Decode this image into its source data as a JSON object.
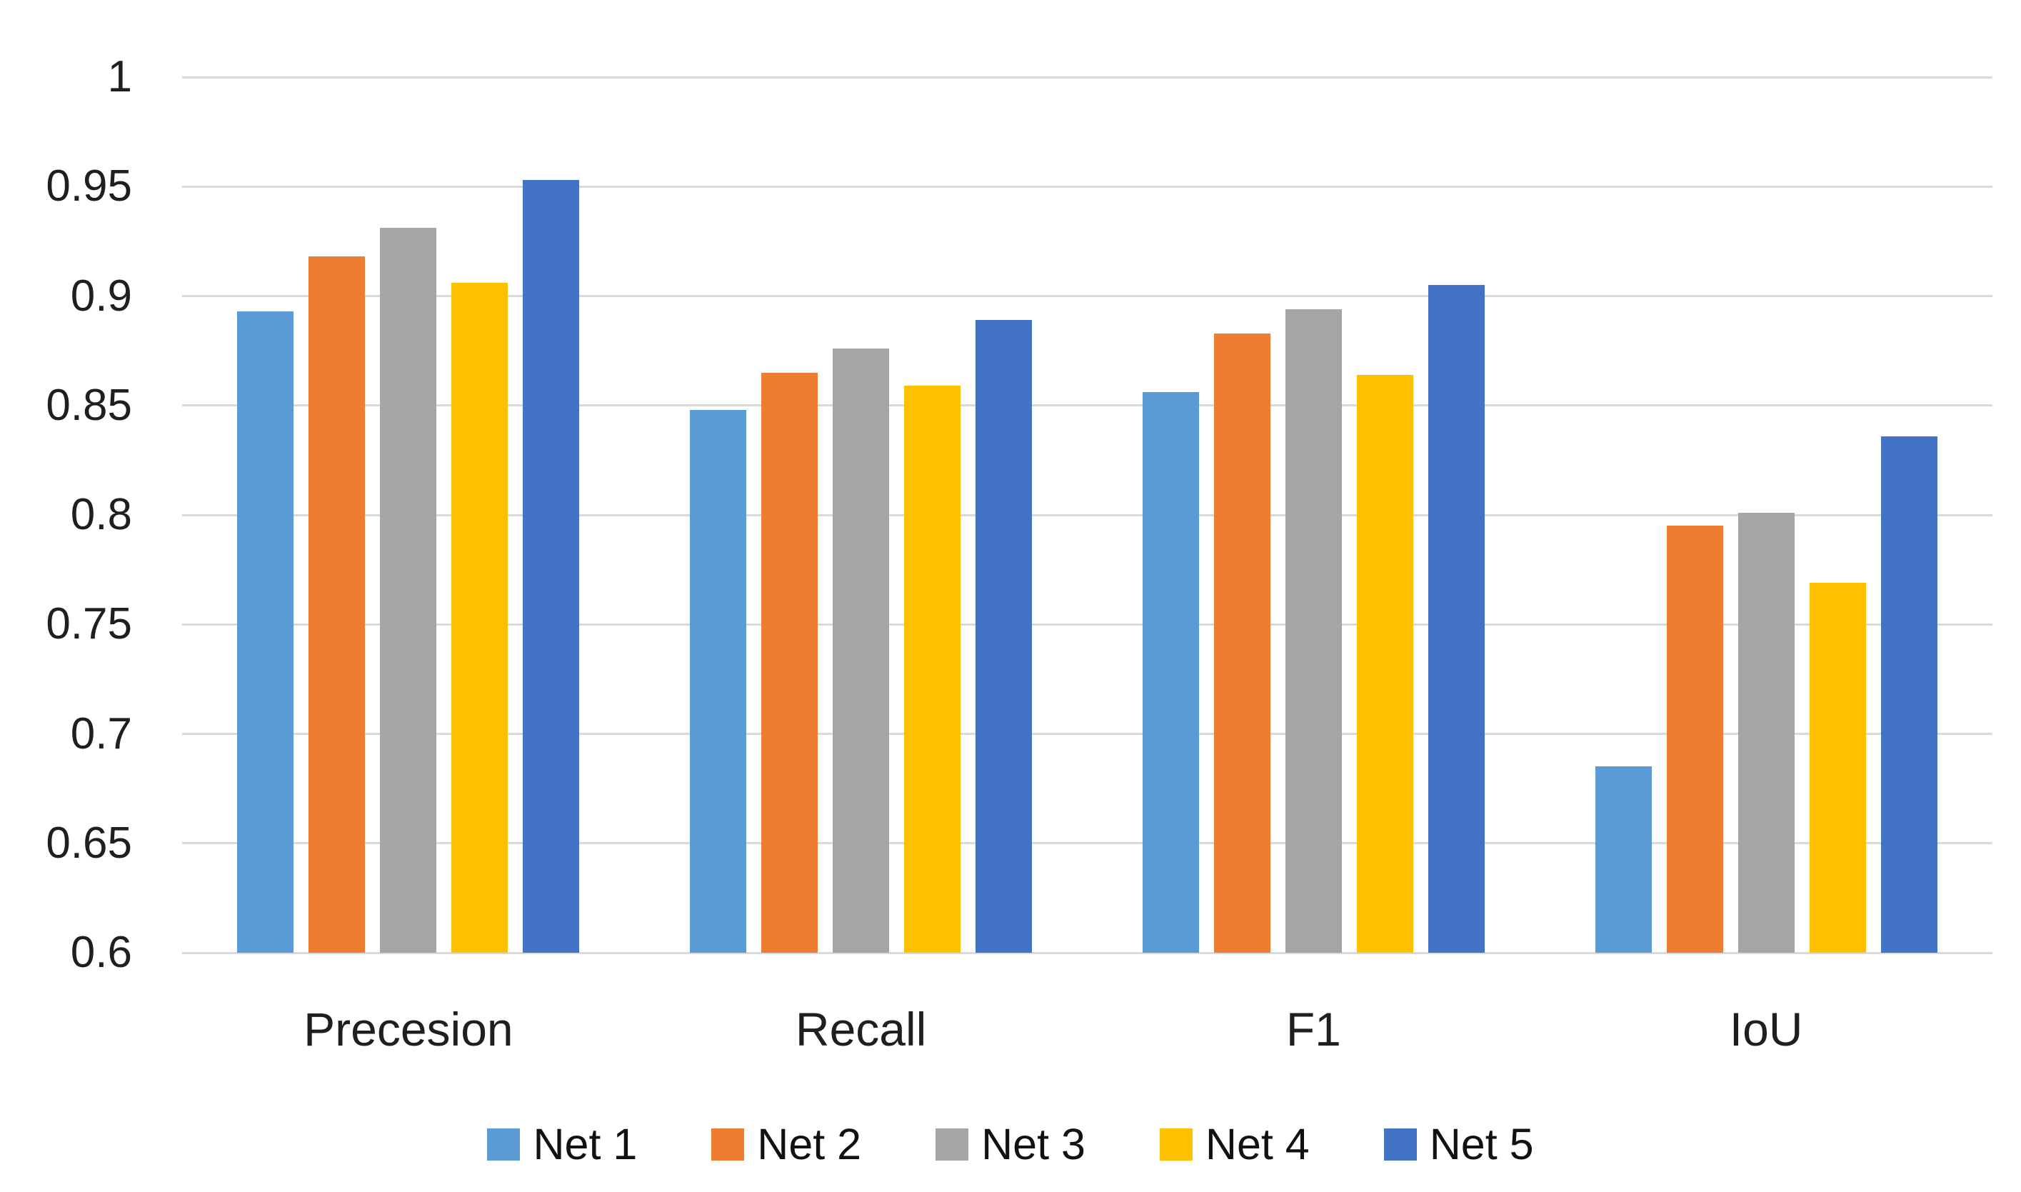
{
  "chart_data": {
    "type": "bar",
    "title": "",
    "categories": [
      "Precesion",
      "Recall",
      "F1",
      "IoU"
    ],
    "series": [
      {
        "name": "Net 1",
        "color": "#5B9BD5",
        "values": [
          0.893,
          0.848,
          0.856,
          0.685
        ]
      },
      {
        "name": "Net 2",
        "color": "#ED7D31",
        "values": [
          0.918,
          0.865,
          0.883,
          0.795
        ]
      },
      {
        "name": "Net 3",
        "color": "#A5A5A5",
        "values": [
          0.931,
          0.876,
          0.894,
          0.801
        ]
      },
      {
        "name": "Net 4",
        "color": "#FFC000",
        "values": [
          0.906,
          0.859,
          0.864,
          0.769
        ]
      },
      {
        "name": "Net 5",
        "color": "#4472C4",
        "values": [
          0.953,
          0.889,
          0.905,
          0.836
        ]
      }
    ],
    "y_axis": {
      "min": 0.6,
      "max": 1.0,
      "step": 0.05,
      "tick_labels": [
        "1",
        "0.95",
        "0.9",
        "0.85",
        "0.8",
        "0.75",
        "0.7",
        "0.65",
        "0.6"
      ]
    },
    "x_axis_labels": [
      "Precesion",
      "Recall",
      "F1",
      "IoU"
    ],
    "legend": {
      "position": "bottom",
      "entries": [
        "Net 1",
        "Net 2",
        "Net 3",
        "Net 4",
        "Net 5"
      ]
    },
    "grid": true,
    "gridline_color": "#D9D9D9",
    "background_color": "#FFFFFF",
    "text_color": "#1F1F1F"
  }
}
